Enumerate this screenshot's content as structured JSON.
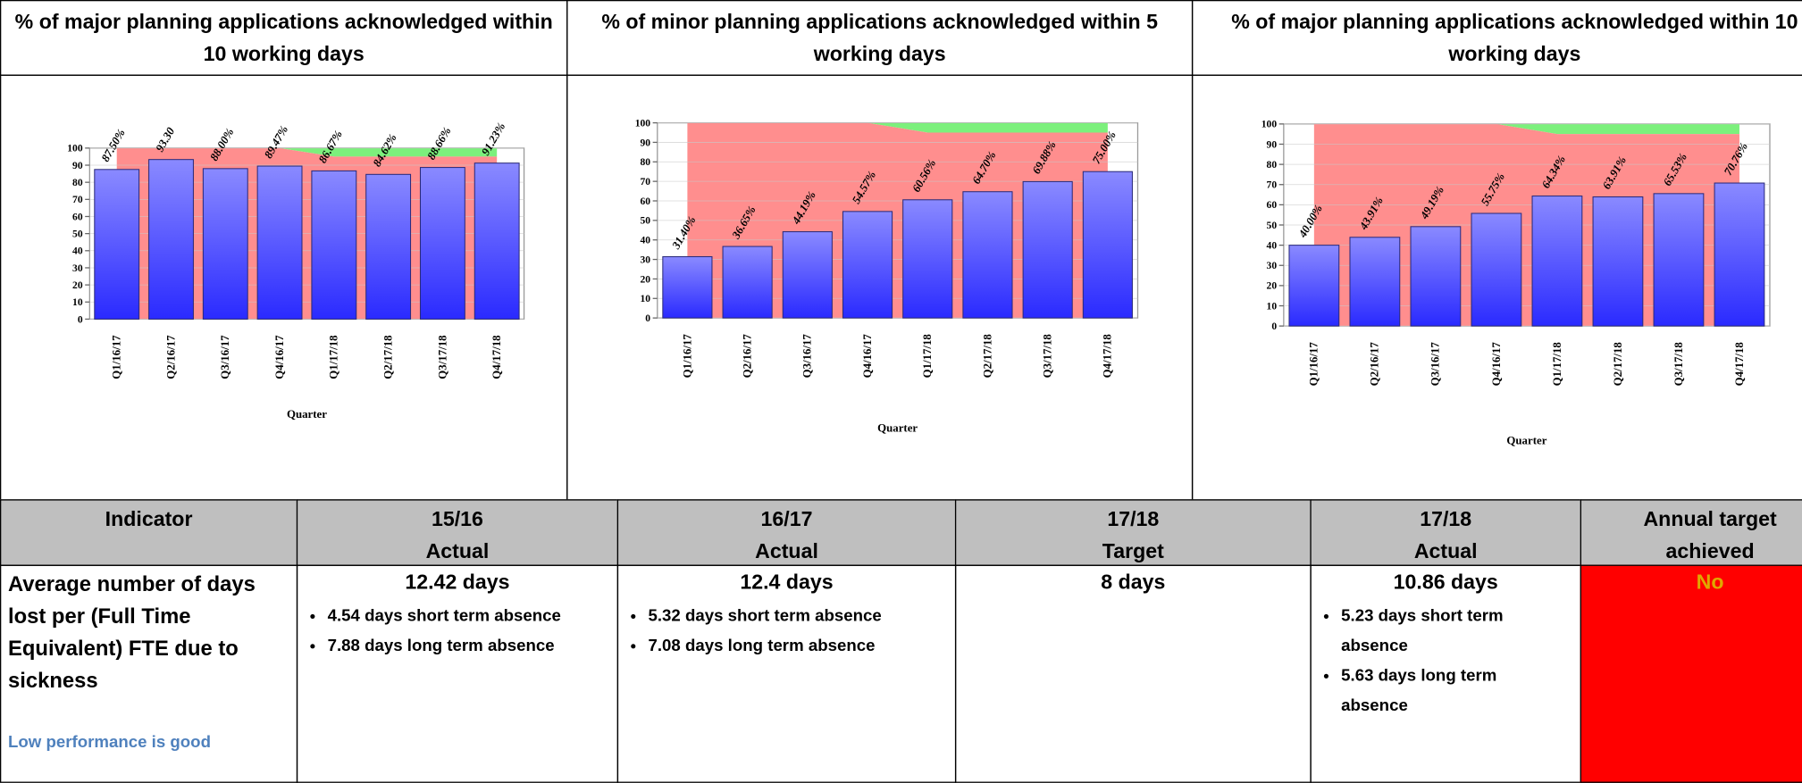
{
  "chart_data": [
    {
      "type": "bar",
      "title": "% of major planning applications acknowledged within 10 working days",
      "x_label": "Quarter",
      "categories": [
        "Q1/16/17",
        "Q2/16/17",
        "Q3/16/17",
        "Q4/16/17",
        "Q1/17/18",
        "Q2/17/18",
        "Q3/17/18",
        "Q4/17/18"
      ],
      "values": [
        87.5,
        93.3,
        88,
        89.47,
        86.67,
        84.62,
        88.66,
        91.23
      ],
      "value_labels": [
        "87.50%",
        "93.30",
        "88.00%",
        "89.47%",
        "86.67%",
        "84.62%",
        "88.66%",
        "91.23%"
      ],
      "target": [
        100,
        100,
        100,
        100,
        95,
        95,
        95,
        95
      ],
      "ylim": [
        0,
        100
      ],
      "yticks": [
        0,
        10,
        20,
        30,
        40,
        50,
        60,
        70,
        80,
        90,
        100
      ],
      "grid": true,
      "color": "#4040ff"
    },
    {
      "type": "bar",
      "title": "% of minor planning applications acknowledged within 5 working days",
      "x_label": "Quarter",
      "categories": [
        "Q1/16/17",
        "Q2/16/17",
        "Q3/16/17",
        "Q4/16/17",
        "Q1/17/18",
        "Q2/17/18",
        "Q3/17/18",
        "Q4/17/18"
      ],
      "values": [
        31.4,
        36.65,
        44.19,
        54.57,
        60.56,
        64.7,
        69.88,
        75
      ],
      "value_labels": [
        "31.40%",
        "36.65%",
        "44.19%",
        "54.57%",
        "60.56%",
        "64.70%",
        "69.88%",
        "75.00%"
      ],
      "target": [
        100,
        100,
        100,
        100,
        95,
        95,
        95,
        95
      ],
      "ylim": [
        0,
        100
      ],
      "yticks": [
        0,
        10,
        20,
        30,
        40,
        50,
        60,
        70,
        80,
        90,
        100
      ],
      "grid": true,
      "color": "#4040ff"
    },
    {
      "type": "bar",
      "title": "% of major planning applications acknowledged within 10 working days",
      "x_label": "Quarter",
      "categories": [
        "Q1/16/17",
        "Q2/16/17",
        "Q3/16/17",
        "Q4/16/17",
        "Q1/17/18",
        "Q2/17/18",
        "Q3/17/18",
        "Q4/17/18"
      ],
      "values": [
        40,
        43.91,
        49.19,
        55.75,
        64.34,
        63.91,
        65.53,
        70.76
      ],
      "value_labels": [
        "40.00%",
        "43.91%",
        "49.19%",
        "55.75%",
        "64.34%",
        "63.91%",
        "65.53%",
        "70.76%"
      ],
      "target": [
        100,
        100,
        100,
        100,
        95,
        95,
        95,
        95
      ],
      "ylim": [
        0,
        100
      ],
      "yticks": [
        0,
        10,
        20,
        30,
        40,
        50,
        60,
        70,
        80,
        90,
        100
      ],
      "grid": true,
      "color": "#4040ff"
    }
  ],
  "table": {
    "header": [
      [
        "Indicator"
      ],
      [
        "15/16",
        "Actual"
      ],
      [
        "16/17",
        "Actual"
      ],
      [
        "17/18",
        "Target"
      ],
      [
        "17/18",
        "Actual"
      ],
      [
        "Annual target",
        "achieved"
      ]
    ],
    "row": {
      "indicator": "Average number of days lost per (Full Time Equivalent) FTE due to sickness",
      "note": "Low performance is good",
      "c1": {
        "value": "12.42 days",
        "bullets": [
          "4.54 days short term absence",
          "7.88 days long term absence"
        ]
      },
      "c2": {
        "value": "12.4 days",
        "bullets": [
          "5.32 days short term absence",
          "7.08 days long term absence"
        ]
      },
      "c3": {
        "value": "8 days",
        "bullets": []
      },
      "c4": {
        "value": "10.86 days",
        "bullets": [
          "5.23 days short term absence",
          "5.63 days long term absence"
        ]
      },
      "c5": {
        "value": "No",
        "bullets": []
      }
    }
  }
}
